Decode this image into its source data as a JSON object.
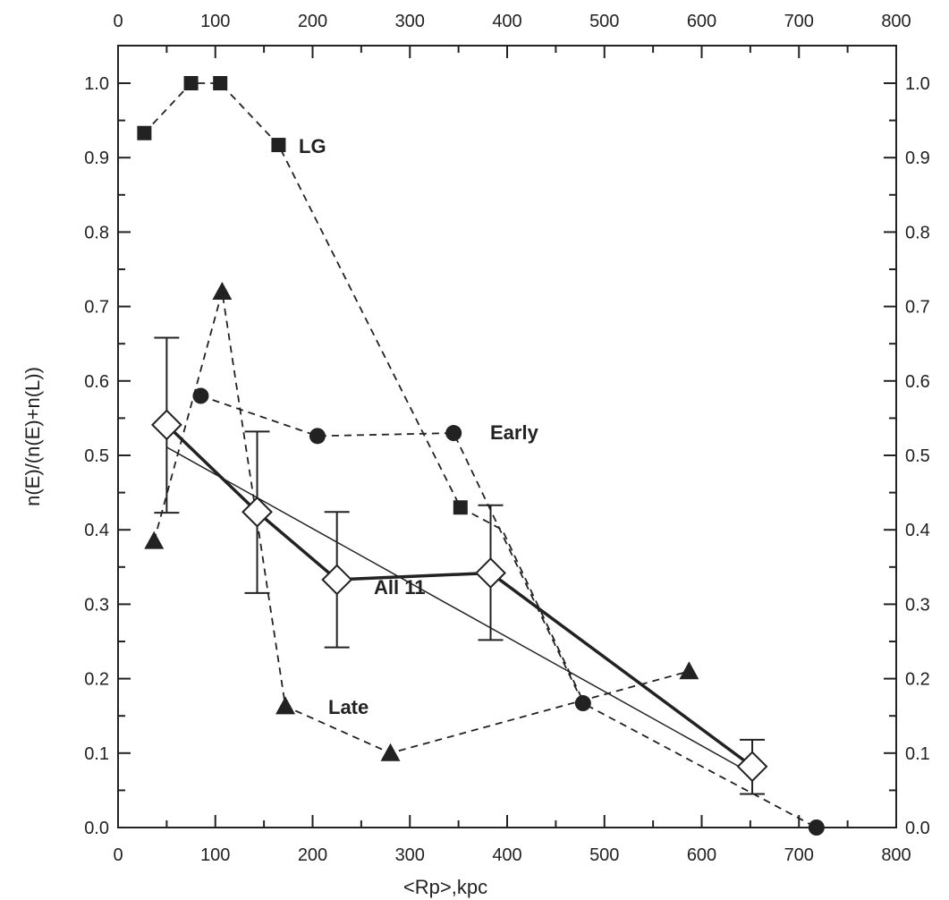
{
  "chart_data": {
    "type": "line",
    "title": "",
    "xlabel": "<Rp>,kpc",
    "ylabel": "n(E)/(n(E)+n(L))",
    "xlim": [
      0,
      800
    ],
    "ylim": [
      0,
      1.05
    ],
    "x_ticks": [
      "0",
      "100",
      "200",
      "300",
      "400",
      "500",
      "600",
      "700",
      "800"
    ],
    "y_ticks": [
      "0.0",
      "0.1",
      "0.2",
      "0.3",
      "0.4",
      "0.5",
      "0.6",
      "0.7",
      "0.8",
      "0.9",
      "1.0"
    ],
    "grid": false,
    "series": [
      {
        "name": "LG",
        "marker": "square",
        "line": "dashed",
        "x": [
          27,
          75,
          105,
          165,
          352,
          395,
          478
        ],
        "y": [
          0.933,
          1.0,
          1.0,
          0.917,
          0.43,
          0.4,
          0.17
        ]
      },
      {
        "name": "Early",
        "marker": "circle",
        "line": "dashed",
        "x": [
          85,
          205,
          345,
          478,
          718
        ],
        "y": [
          0.58,
          0.526,
          0.53,
          0.167,
          0.0
        ]
      },
      {
        "name": "Late",
        "marker": "triangle",
        "line": "dashed",
        "x": [
          37,
          107,
          172,
          280,
          587
        ],
        "y": [
          0.385,
          0.72,
          0.163,
          0.1,
          0.21
        ]
      },
      {
        "name": "All 11",
        "marker": "diamond",
        "line": "solid",
        "x": [
          50,
          143,
          225,
          383,
          652
        ],
        "y": [
          0.541,
          0.424,
          0.333,
          0.342,
          0.082
        ],
        "error_low": [
          0.423,
          0.315,
          0.242,
          0.252,
          0.045
        ],
        "error_high": [
          0.658,
          0.532,
          0.424,
          0.433,
          0.118
        ]
      }
    ],
    "fit_line": {
      "x": [
        50,
        652
      ],
      "y": [
        0.511,
        0.072
      ]
    }
  }
}
